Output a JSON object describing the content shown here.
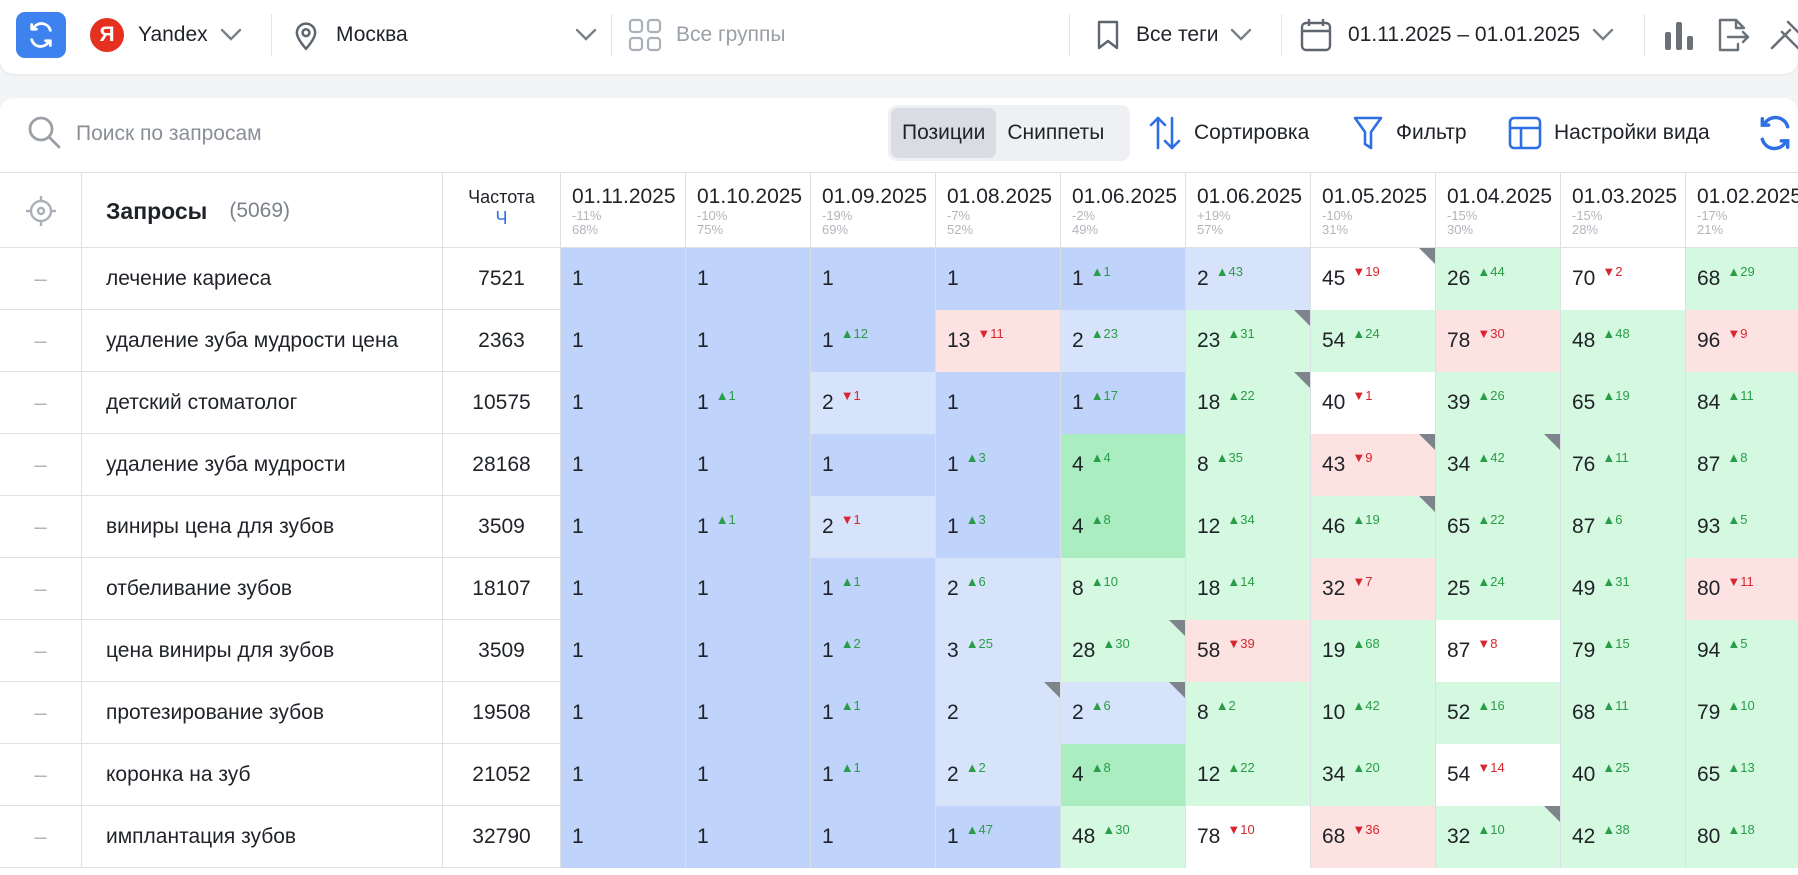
{
  "topbar": {
    "engine": "Yandex",
    "engine_logo": "Я",
    "region": "Москва",
    "groups": "Все группы",
    "tags": "Все теги",
    "date_range": "01.11.2025 – 01.01.2025"
  },
  "toolbar": {
    "search_placeholder": "Поиск по запросам",
    "tabs": [
      "Позиции",
      "Сниппеты"
    ],
    "sort": "Сортировка",
    "filter": "Фильтр",
    "view_settings": "Настройки вида"
  },
  "table": {
    "queries_header": "Запросы",
    "queries_count": "(5069)",
    "freq_header": "Частота",
    "freq_sub": "Ч",
    "dates": [
      {
        "date": "01.11.2025",
        "change": "-11%",
        "share": "68%"
      },
      {
        "date": "01.10.2025",
        "change": "-10%",
        "share": "75%"
      },
      {
        "date": "01.09.2025",
        "change": "-19%",
        "share": "69%"
      },
      {
        "date": "01.08.2025",
        "change": "-7%",
        "share": "52%"
      },
      {
        "date": "01.06.2025",
        "change": "-2%",
        "share": "49%"
      },
      {
        "date": "01.06.2025",
        "change": "+19%",
        "share": "57%"
      },
      {
        "date": "01.05.2025",
        "change": "-10%",
        "share": "31%"
      },
      {
        "date": "01.04.2025",
        "change": "-15%",
        "share": "30%"
      },
      {
        "date": "01.03.2025",
        "change": "-15%",
        "share": "28%"
      },
      {
        "date": "01.02.2025",
        "change": "-17%",
        "share": "21%"
      }
    ],
    "rows": [
      {
        "query": "лечение кариеса",
        "freq": "7521",
        "cells": [
          {
            "v": "1",
            "c": "blue"
          },
          {
            "v": "1",
            "c": "blue"
          },
          {
            "v": "1",
            "c": "blue"
          },
          {
            "v": "1",
            "c": "blue"
          },
          {
            "v": "1",
            "d": "1",
            "dir": "up",
            "c": "blue"
          },
          {
            "v": "2",
            "d": "43",
            "dir": "up",
            "c": "lblue"
          },
          {
            "v": "45",
            "d": "19",
            "dir": "dn",
            "c": "white",
            "corner": true
          },
          {
            "v": "26",
            "d": "44",
            "dir": "up",
            "c": "lgreen"
          },
          {
            "v": "70",
            "d": "2",
            "dir": "dn",
            "c": "white"
          },
          {
            "v": "68",
            "d": "29",
            "dir": "up",
            "c": "lgreen"
          }
        ]
      },
      {
        "query": "удаление зуба мудрости цена",
        "freq": "2363",
        "cells": [
          {
            "v": "1",
            "c": "blue"
          },
          {
            "v": "1",
            "c": "blue"
          },
          {
            "v": "1",
            "d": "12",
            "dir": "up",
            "c": "blue"
          },
          {
            "v": "13",
            "d": "11",
            "dir": "dn",
            "c": "red"
          },
          {
            "v": "2",
            "d": "23",
            "dir": "up",
            "c": "lblue"
          },
          {
            "v": "23",
            "d": "31",
            "dir": "up",
            "c": "lgreen",
            "corner": true
          },
          {
            "v": "54",
            "d": "24",
            "dir": "up",
            "c": "lgreen"
          },
          {
            "v": "78",
            "d": "30",
            "dir": "dn",
            "c": "red"
          },
          {
            "v": "48",
            "d": "48",
            "dir": "up",
            "c": "lgreen"
          },
          {
            "v": "96",
            "d": "9",
            "dir": "dn",
            "c": "red"
          }
        ]
      },
      {
        "query": "детский стоматолог",
        "freq": "10575",
        "cells": [
          {
            "v": "1",
            "c": "blue"
          },
          {
            "v": "1",
            "d": "1",
            "dir": "up",
            "c": "blue"
          },
          {
            "v": "2",
            "d": "1",
            "dir": "dn",
            "c": "lblue"
          },
          {
            "v": "1",
            "c": "blue"
          },
          {
            "v": "1",
            "d": "17",
            "dir": "up",
            "c": "blue"
          },
          {
            "v": "18",
            "d": "22",
            "dir": "up",
            "c": "lgreen",
            "corner": true
          },
          {
            "v": "40",
            "d": "1",
            "dir": "dn",
            "c": "white"
          },
          {
            "v": "39",
            "d": "26",
            "dir": "up",
            "c": "lgreen"
          },
          {
            "v": "65",
            "d": "19",
            "dir": "up",
            "c": "lgreen"
          },
          {
            "v": "84",
            "d": "11",
            "dir": "up",
            "c": "lgreen"
          }
        ]
      },
      {
        "query": "удаление зуба мудрости",
        "freq": "28168",
        "cells": [
          {
            "v": "1",
            "c": "blue"
          },
          {
            "v": "1",
            "c": "blue"
          },
          {
            "v": "1",
            "c": "blue"
          },
          {
            "v": "1",
            "d": "3",
            "dir": "up",
            "c": "blue"
          },
          {
            "v": "4",
            "d": "4",
            "dir": "up",
            "c": "green"
          },
          {
            "v": "8",
            "d": "35",
            "dir": "up",
            "c": "lgreen"
          },
          {
            "v": "43",
            "d": "9",
            "dir": "dn",
            "c": "red",
            "corner": true
          },
          {
            "v": "34",
            "d": "42",
            "dir": "up",
            "c": "lgreen",
            "corner": true
          },
          {
            "v": "76",
            "d": "11",
            "dir": "up",
            "c": "lgreen"
          },
          {
            "v": "87",
            "d": "8",
            "dir": "up",
            "c": "lgreen"
          }
        ]
      },
      {
        "query": "виниры цена для зубов",
        "freq": "3509",
        "cells": [
          {
            "v": "1",
            "c": "blue"
          },
          {
            "v": "1",
            "d": "1",
            "dir": "up",
            "c": "blue"
          },
          {
            "v": "2",
            "d": "1",
            "dir": "dn",
            "c": "lblue"
          },
          {
            "v": "1",
            "d": "3",
            "dir": "up",
            "c": "blue"
          },
          {
            "v": "4",
            "d": "8",
            "dir": "up",
            "c": "green"
          },
          {
            "v": "12",
            "d": "34",
            "dir": "up",
            "c": "lgreen"
          },
          {
            "v": "46",
            "d": "19",
            "dir": "up",
            "c": "lgreen",
            "corner": true
          },
          {
            "v": "65",
            "d": "22",
            "dir": "up",
            "c": "lgreen"
          },
          {
            "v": "87",
            "d": "6",
            "dir": "up",
            "c": "lgreen"
          },
          {
            "v": "93",
            "d": "5",
            "dir": "up",
            "c": "lgreen"
          }
        ]
      },
      {
        "query": "отбеливание зубов",
        "freq": "18107",
        "cells": [
          {
            "v": "1",
            "c": "blue"
          },
          {
            "v": "1",
            "c": "blue"
          },
          {
            "v": "1",
            "d": "1",
            "dir": "up",
            "c": "blue"
          },
          {
            "v": "2",
            "d": "6",
            "dir": "up",
            "c": "lblue"
          },
          {
            "v": "8",
            "d": "10",
            "dir": "up",
            "c": "lgreen"
          },
          {
            "v": "18",
            "d": "14",
            "dir": "up",
            "c": "lgreen"
          },
          {
            "v": "32",
            "d": "7",
            "dir": "dn",
            "c": "red"
          },
          {
            "v": "25",
            "d": "24",
            "dir": "up",
            "c": "lgreen"
          },
          {
            "v": "49",
            "d": "31",
            "dir": "up",
            "c": "lgreen"
          },
          {
            "v": "80",
            "d": "11",
            "dir": "dn",
            "c": "red"
          }
        ]
      },
      {
        "query": "цена виниры для зубов",
        "freq": "3509",
        "cells": [
          {
            "v": "1",
            "c": "blue"
          },
          {
            "v": "1",
            "c": "blue"
          },
          {
            "v": "1",
            "d": "2",
            "dir": "up",
            "c": "blue"
          },
          {
            "v": "3",
            "d": "25",
            "dir": "up",
            "c": "lblue"
          },
          {
            "v": "28",
            "d": "30",
            "dir": "up",
            "c": "lgreen",
            "corner": true
          },
          {
            "v": "58",
            "d": "39",
            "dir": "dn",
            "c": "red"
          },
          {
            "v": "19",
            "d": "68",
            "dir": "up",
            "c": "lgreen"
          },
          {
            "v": "87",
            "d": "8",
            "dir": "dn",
            "c": "white"
          },
          {
            "v": "79",
            "d": "15",
            "dir": "up",
            "c": "lgreen"
          },
          {
            "v": "94",
            "d": "5",
            "dir": "up",
            "c": "lgreen"
          }
        ]
      },
      {
        "query": "протезирование зубов",
        "freq": "19508",
        "cells": [
          {
            "v": "1",
            "c": "blue"
          },
          {
            "v": "1",
            "c": "blue"
          },
          {
            "v": "1",
            "d": "1",
            "dir": "up",
            "c": "blue"
          },
          {
            "v": "2",
            "c": "lblue",
            "corner": true
          },
          {
            "v": "2",
            "d": "6",
            "dir": "up",
            "c": "lblue",
            "corner": true
          },
          {
            "v": "8",
            "d": "2",
            "dir": "up",
            "c": "lgreen"
          },
          {
            "v": "10",
            "d": "42",
            "dir": "up",
            "c": "lgreen"
          },
          {
            "v": "52",
            "d": "16",
            "dir": "up",
            "c": "lgreen"
          },
          {
            "v": "68",
            "d": "11",
            "dir": "up",
            "c": "lgreen"
          },
          {
            "v": "79",
            "d": "10",
            "dir": "up",
            "c": "lgreen"
          }
        ]
      },
      {
        "query": "коронка на зуб",
        "freq": "21052",
        "cells": [
          {
            "v": "1",
            "c": "blue"
          },
          {
            "v": "1",
            "c": "blue"
          },
          {
            "v": "1",
            "d": "1",
            "dir": "up",
            "c": "blue"
          },
          {
            "v": "2",
            "d": "2",
            "dir": "up",
            "c": "lblue"
          },
          {
            "v": "4",
            "d": "8",
            "dir": "up",
            "c": "green"
          },
          {
            "v": "12",
            "d": "22",
            "dir": "up",
            "c": "lgreen"
          },
          {
            "v": "34",
            "d": "20",
            "dir": "up",
            "c": "lgreen"
          },
          {
            "v": "54",
            "d": "14",
            "dir": "dn",
            "c": "white"
          },
          {
            "v": "40",
            "d": "25",
            "dir": "up",
            "c": "lgreen"
          },
          {
            "v": "65",
            "d": "13",
            "dir": "up",
            "c": "lgreen"
          }
        ]
      },
      {
        "query": "имплантация зубов",
        "freq": "32790",
        "cells": [
          {
            "v": "1",
            "c": "blue"
          },
          {
            "v": "1",
            "c": "blue"
          },
          {
            "v": "1",
            "c": "blue"
          },
          {
            "v": "1",
            "d": "47",
            "dir": "up",
            "c": "blue"
          },
          {
            "v": "48",
            "d": "30",
            "dir": "up",
            "c": "lgreen"
          },
          {
            "v": "78",
            "d": "10",
            "dir": "dn",
            "c": "white"
          },
          {
            "v": "68",
            "d": "36",
            "dir": "dn",
            "c": "red"
          },
          {
            "v": "32",
            "d": "10",
            "dir": "up",
            "c": "lgreen",
            "corner": true
          },
          {
            "v": "42",
            "d": "38",
            "dir": "up",
            "c": "lgreen"
          },
          {
            "v": "80",
            "d": "18",
            "dir": "up",
            "c": "lgreen"
          }
        ]
      }
    ]
  }
}
